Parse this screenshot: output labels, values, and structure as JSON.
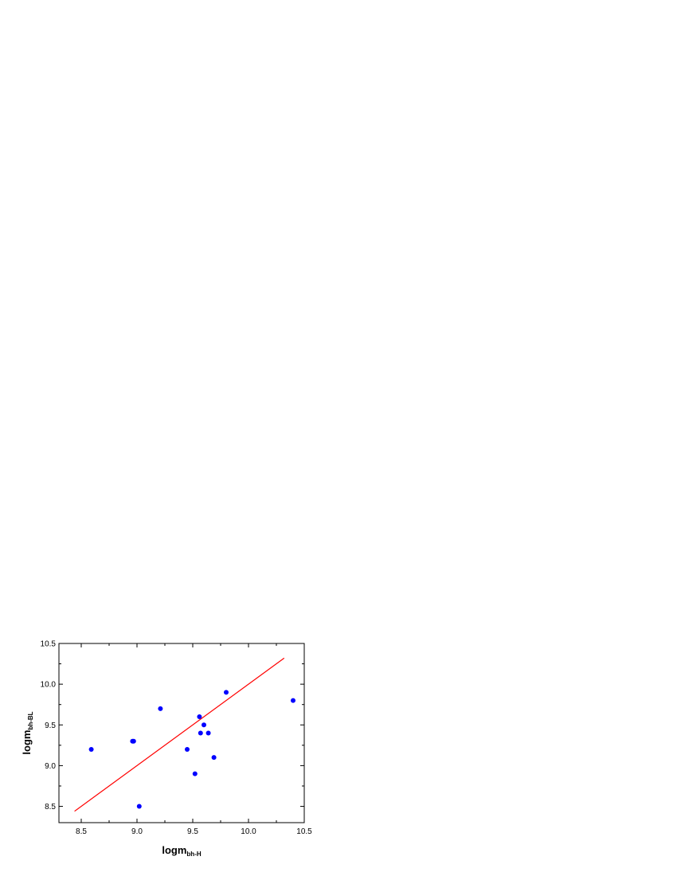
{
  "chart_data": {
    "type": "scatter",
    "xlabel": {
      "main": "logm",
      "subscript": "bh-H"
    },
    "ylabel": {
      "main": "logm",
      "subscript": "bh-BL"
    },
    "xlim": [
      8.3,
      10.5
    ],
    "ylim": [
      8.3,
      10.5
    ],
    "xticks": [
      "8.5",
      "9.0",
      "9.5",
      "10.0",
      "10.5"
    ],
    "yticks": [
      "8.5",
      "9.0",
      "9.5",
      "10.0",
      "10.5"
    ],
    "grid": false,
    "legend": "none",
    "series": [
      {
        "kind": "points",
        "color": "#0000ff",
        "x": [
          8.59,
          8.96,
          8.97,
          9.02,
          9.21,
          9.45,
          9.52,
          9.56,
          9.57,
          9.6,
          9.64,
          9.69,
          9.8,
          10.4
        ],
        "y": [
          9.2,
          9.3,
          9.3,
          8.5,
          9.7,
          9.2,
          8.9,
          9.6,
          9.4,
          9.5,
          9.4,
          9.1,
          9.9,
          9.8
        ]
      },
      {
        "kind": "fit-line",
        "color": "#ff0000",
        "x": [
          8.44,
          10.32
        ],
        "y": [
          8.44,
          10.32
        ]
      }
    ]
  }
}
